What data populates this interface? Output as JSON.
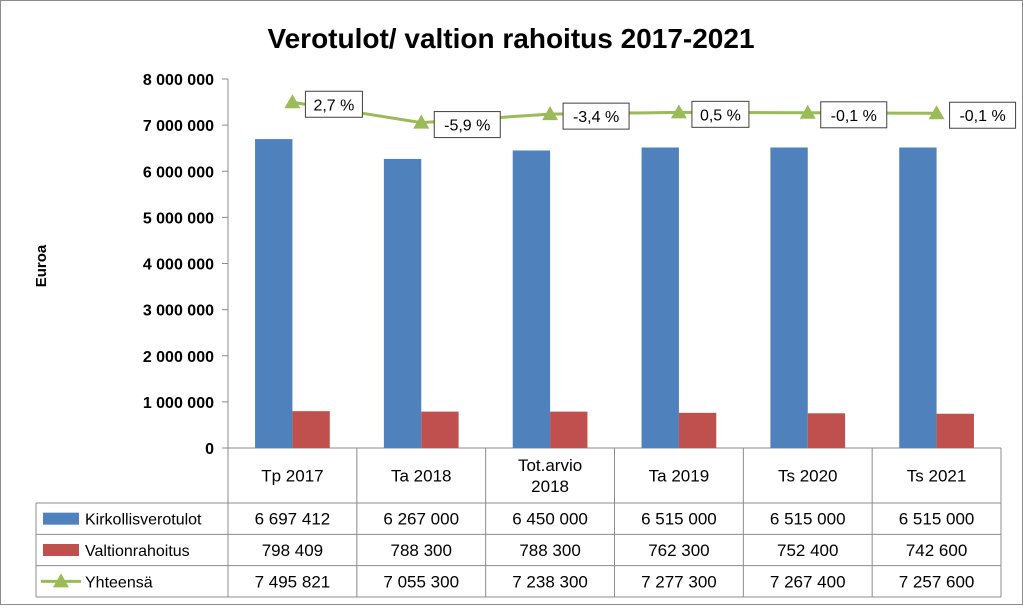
{
  "chart_data": {
    "type": "bar",
    "title": "Verotulot/ valtion rahoitus 2017-2021",
    "ylabel": "Euroa",
    "ylim": [
      0,
      8000000
    ],
    "yticks": [
      "0",
      "1 000 000",
      "2 000 000",
      "3 000 000",
      "4 000 000",
      "5 000 000",
      "6 000 000",
      "7 000 000",
      "8 000 000"
    ],
    "categories": [
      [
        "Tp 2017"
      ],
      [
        "Ta 2018"
      ],
      [
        "Tot.arvio",
        "2018"
      ],
      [
        "Ta 2019"
      ],
      [
        "Ts 2020"
      ],
      [
        "Ts 2021"
      ]
    ],
    "series": [
      {
        "name": "Kirkollisverotulot",
        "kind": "bar",
        "color": "#4f81bd",
        "values": [
          6697412,
          6267000,
          6450000,
          6515000,
          6515000,
          6515000
        ],
        "labels": [
          "6 697 412",
          "6 267 000",
          "6 450 000",
          "6 515 000",
          "6 515 000",
          "6 515 000"
        ]
      },
      {
        "name": "Valtionrahoitus",
        "kind": "bar",
        "color": "#c0504d",
        "values": [
          798409,
          788300,
          788300,
          762300,
          752400,
          742600
        ],
        "labels": [
          "798 409",
          "788 300",
          "788 300",
          "762 300",
          "752 400",
          "742 600"
        ]
      },
      {
        "name": "Yhteensä",
        "kind": "line",
        "color": "#9bbb59",
        "values": [
          7495821,
          7055300,
          7238300,
          7277300,
          7267400,
          7257600
        ],
        "labels": [
          "7 495 821",
          "7 055 300",
          "7 238 300",
          "7 277 300",
          "7 267 400",
          "7 257 600"
        ],
        "annotations": [
          "2,7 %",
          "-5,9 %",
          "-3,4 %",
          "0,5 %",
          "-0,1 %",
          "-0,1 %"
        ]
      }
    ],
    "grid": false,
    "legend": "data-table"
  }
}
